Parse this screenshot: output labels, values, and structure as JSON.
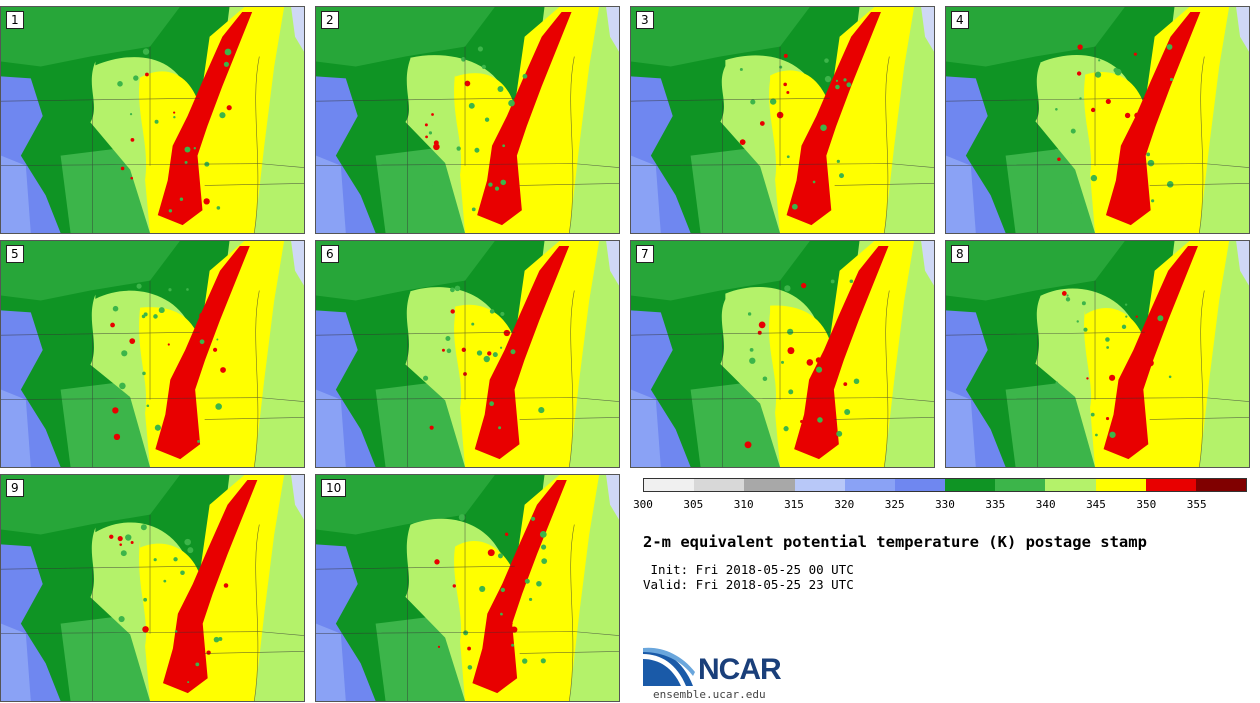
{
  "panels": [
    "1",
    "2",
    "3",
    "4",
    "5",
    "6",
    "7",
    "8",
    "9",
    "10"
  ],
  "colorbar": {
    "ticks": [
      "300",
      "305",
      "310",
      "315",
      "320",
      "325",
      "330",
      "335",
      "340",
      "345",
      "350",
      "355"
    ],
    "colors": [
      "#f0f0f0",
      "#d8d8d8",
      "#a8a8a8",
      "#b8c8f8",
      "#8aa2f5",
      "#6f87f0",
      "#0f9424",
      "#3cb54a",
      "#b4f26a",
      "#ffff00",
      "#e80000",
      "#800000"
    ]
  },
  "title": "2-m equivalent potential temperature (K) postage stamp",
  "init": " Init: Fri 2018-05-25 00 UTC",
  "valid": "Valid: Fri 2018-05-25 23 UTC",
  "logo": {
    "text": "NCAR",
    "site": "ensemble.ucar.edu"
  }
}
